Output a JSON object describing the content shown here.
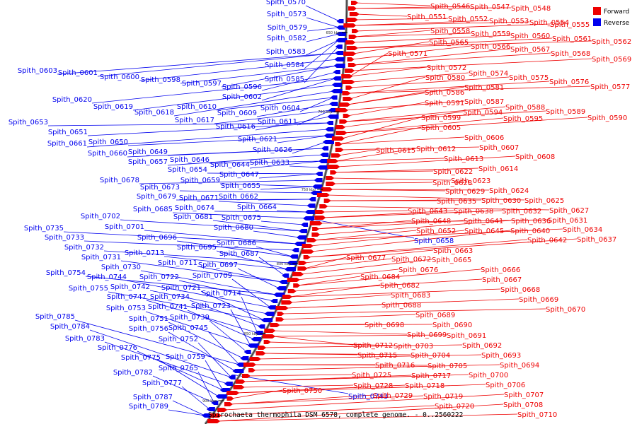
{
  "caption": "Spirochaeta thermophila DSM 6578, complete genome. - 0..2560222",
  "legend": [
    {
      "label": "Forward",
      "color": "#ee0000"
    },
    {
      "label": "Reverse",
      "color": "#0000ee"
    }
  ],
  "ticks": [
    "650 kbp",
    "700 kbp",
    "750 kbp",
    "800 kbp",
    "850 kbp",
    "900 kbp"
  ],
  "reverse_genes": [
    "Spith_0570",
    "Spith_0573",
    "Spith_0579",
    "Spith_0582",
    "Spith_0583",
    "Spith_0584",
    "Spith_0585",
    "Spith_0603",
    "Spith_0601",
    "Spith_0600",
    "Spith_0598",
    "Spith_0597",
    "Spith_0596",
    "Spith_0602",
    "Spith_0620",
    "Spith_0619",
    "Spith_0618",
    "Spith_0610",
    "Spith_0604",
    "Spith_0609",
    "Spith_0617",
    "Spith_0611",
    "Spith_0616",
    "Spith_0653",
    "Spith_0651",
    "Spith_0661",
    "Spith_0650",
    "Spith_0621",
    "Spith_0626",
    "Spith_0660",
    "Spith_0649",
    "Spith_0657",
    "Spith_0646",
    "Spith_0644",
    "Spith_0633",
    "Spith_0654",
    "Spith_0647",
    "Spith_0678",
    "Spith_0659",
    "Spith_0655",
    "Spith_0673",
    "Spith_0662",
    "Spith_0679",
    "Spith_0671",
    "Spith_0674",
    "Spith_0664",
    "Spith_0685",
    "Spith_0675",
    "Spith_0702",
    "Spith_0681",
    "Spith_0680",
    "Spith_0735",
    "Spith_0701",
    "Spith_0733",
    "Spith_0696",
    "Spith_0686",
    "Spith_0732",
    "Spith_0695",
    "Spith_0713",
    "Spith_0687",
    "Spith_0731",
    "Spith_0711",
    "Spith_0697",
    "Spith_0730",
    "Spith_0754",
    "Spith_0722",
    "Spith_0709",
    "Spith_0744",
    "Spith_0742",
    "Spith_0721",
    "Spith_0755",
    "Spith_0734",
    "Spith_0714",
    "Spith_0747",
    "Spith_0741",
    "Spith_0723",
    "Spith_0753",
    "Spith_0739",
    "Spith_0751",
    "Spith_0785",
    "Spith_0745",
    "Spith_0756",
    "Spith_0784",
    "Spith_0752",
    "Spith_0783",
    "Spith_0776",
    "Spith_0759",
    "Spith_0775",
    "Spith_0765",
    "Spith_0782",
    "Spith_0777",
    "Spith_0787",
    "Spith_0789",
    "Spith_0658",
    "Spith_0743"
  ],
  "forward_genes": [
    "Spith_0546",
    "Spith_0547",
    "Spith_0548",
    "Spith_0551",
    "Spith_0552",
    "Spith_0553",
    "Spith_0554",
    "Spith_0555",
    "Spith_0558",
    "Spith_0559",
    "Spith_0560",
    "Spith_0561",
    "Spith_0562",
    "Spith_0565",
    "Spith_0566",
    "Spith_0567",
    "Spith_0568",
    "Spith_0569",
    "Spith_0571",
    "Spith_0572",
    "Spith_0574",
    "Spith_0575",
    "Spith_0576",
    "Spith_0577",
    "Spith_0580",
    "Spith_0581",
    "Spith_0586",
    "Spith_0587",
    "Spith_0591",
    "Spith_0588",
    "Spith_0589",
    "Spith_0594",
    "Spith_0595",
    "Spith_0590",
    "Spith_0599",
    "Spith_0605",
    "Spith_0606",
    "Spith_0607",
    "Spith_0615",
    "Spith_0612",
    "Spith_0613",
    "Spith_0608",
    "Spith_0614",
    "Spith_0622",
    "Spith_0623",
    "Spith_0628",
    "Spith_0624",
    "Spith_0629",
    "Spith_0625",
    "Spith_0635",
    "Spith_0630",
    "Spith_0627",
    "Spith_0643",
    "Spith_0638",
    "Spith_0632",
    "Spith_0631",
    "Spith_0648",
    "Spith_0641",
    "Spith_0636",
    "Spith_0634",
    "Spith_0652",
    "Spith_0645",
    "Spith_0640",
    "Spith_0642",
    "Spith_0637",
    "Spith_0663",
    "Spith_0677",
    "Spith_0672",
    "Spith_0665",
    "Spith_0676",
    "Spith_0666",
    "Spith_0684",
    "Spith_0667",
    "Spith_0682",
    "Spith_0668",
    "Spith_0683",
    "Spith_0669",
    "Spith_0688",
    "Spith_0670",
    "Spith_0689",
    "Spith_0698",
    "Spith_0690",
    "Spith_0699",
    "Spith_0691",
    "Spith_0712",
    "Spith_0703",
    "Spith_0692",
    "Spith_0715",
    "Spith_0704",
    "Spith_0693",
    "Spith_0716",
    "Spith_0705",
    "Spith_0694",
    "Spith_0725",
    "Spith_0717",
    "Spith_0700",
    "Spith_0728",
    "Spith_0718",
    "Spith_0706",
    "Spith_0750",
    "Spith_0729",
    "Spith_0719",
    "Spith_0707",
    "Spith_0720",
    "Spith_0708",
    "Spith_0710"
  ]
}
